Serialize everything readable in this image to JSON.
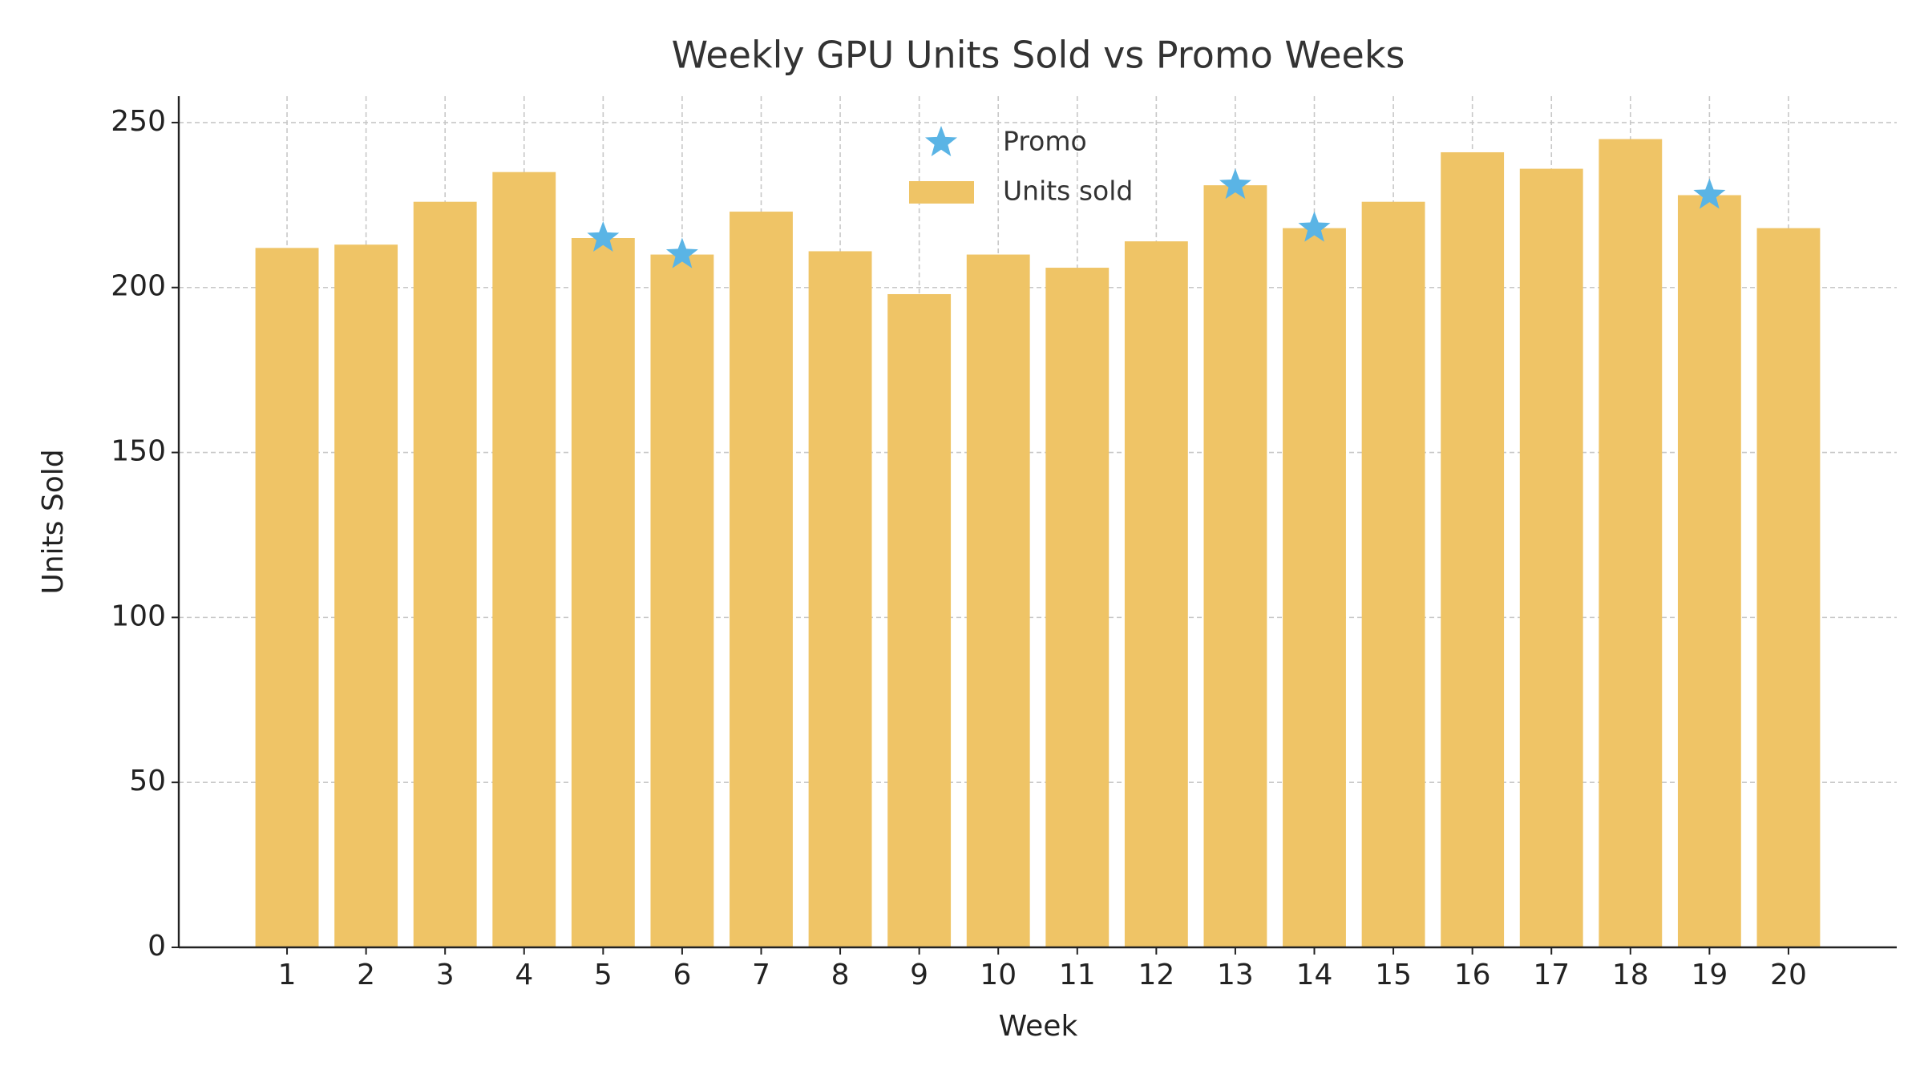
{
  "chart_data": {
    "type": "bar",
    "title": "Weekly GPU Units Sold vs Promo Weeks",
    "x_label": "Week",
    "y_label": "Units Sold",
    "x": [
      1,
      2,
      3,
      4,
      5,
      6,
      7,
      8,
      9,
      10,
      11,
      12,
      13,
      14,
      15,
      16,
      17,
      18,
      19,
      20
    ],
    "series": [
      {
        "name": "Promo",
        "type": "scatter",
        "marker": "star",
        "color": "#5ab4e5",
        "x": [
          5,
          6,
          13,
          14,
          19
        ],
        "values": [
          215,
          210,
          231,
          218,
          228
        ]
      },
      {
        "name": "Units sold",
        "type": "bar",
        "color": "#efc466",
        "values": [
          212,
          213,
          226,
          235,
          215,
          210,
          223,
          211,
          198,
          210,
          206,
          214,
          231,
          218,
          226,
          241,
          236,
          245,
          228,
          218
        ]
      }
    ],
    "xlim": [
      -0.37,
      21.37
    ],
    "xticks": [
      1,
      2,
      3,
      4,
      5,
      6,
      7,
      8,
      9,
      10,
      11,
      12,
      13,
      14,
      15,
      16,
      17,
      18,
      19,
      20
    ],
    "ylim": [
      0,
      258
    ],
    "yticks": [
      0,
      50,
      100,
      150,
      200,
      250
    ],
    "grid": true,
    "legend": "top-center"
  }
}
